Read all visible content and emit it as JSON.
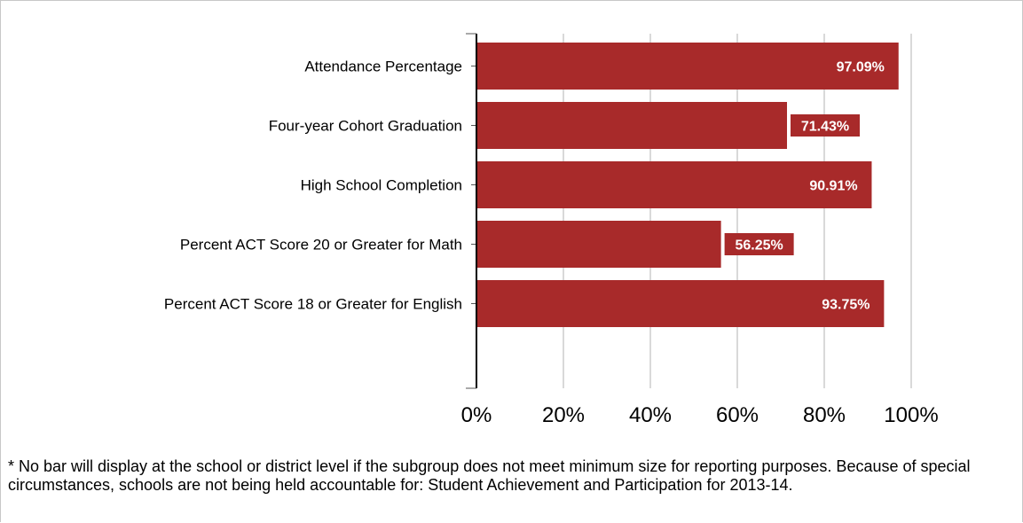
{
  "chart_data": {
    "type": "bar",
    "orientation": "horizontal",
    "categories": [
      "Attendance Percentage",
      "Four-year Cohort Graduation",
      "High School Completion",
      "Percent ACT Score 20 or Greater for Math",
      "Percent ACT Score 18 or Greater for English"
    ],
    "values": [
      97.09,
      71.43,
      90.91,
      56.25,
      93.75
    ],
    "value_labels": [
      "97.09%",
      "71.43%",
      "90.91%",
      "56.25%",
      "93.75%"
    ],
    "xlim": [
      0,
      100
    ],
    "x_ticks": [
      0,
      20,
      40,
      60,
      80,
      100
    ],
    "x_tick_labels": [
      "0%",
      "20%",
      "40%",
      "60%",
      "80%",
      "100%"
    ],
    "grid": "vertical",
    "bar_color": "#a82a2a",
    "label_text_color": "#ffffff",
    "grid_color": "#d9d9d9"
  },
  "footnote": "* No bar will display at the school or district level if the subgroup does not meet minimum size for reporting purposes. Because of special circumstances, schools are not being held accountable for: Student Achievement and Participation for 2013-14."
}
